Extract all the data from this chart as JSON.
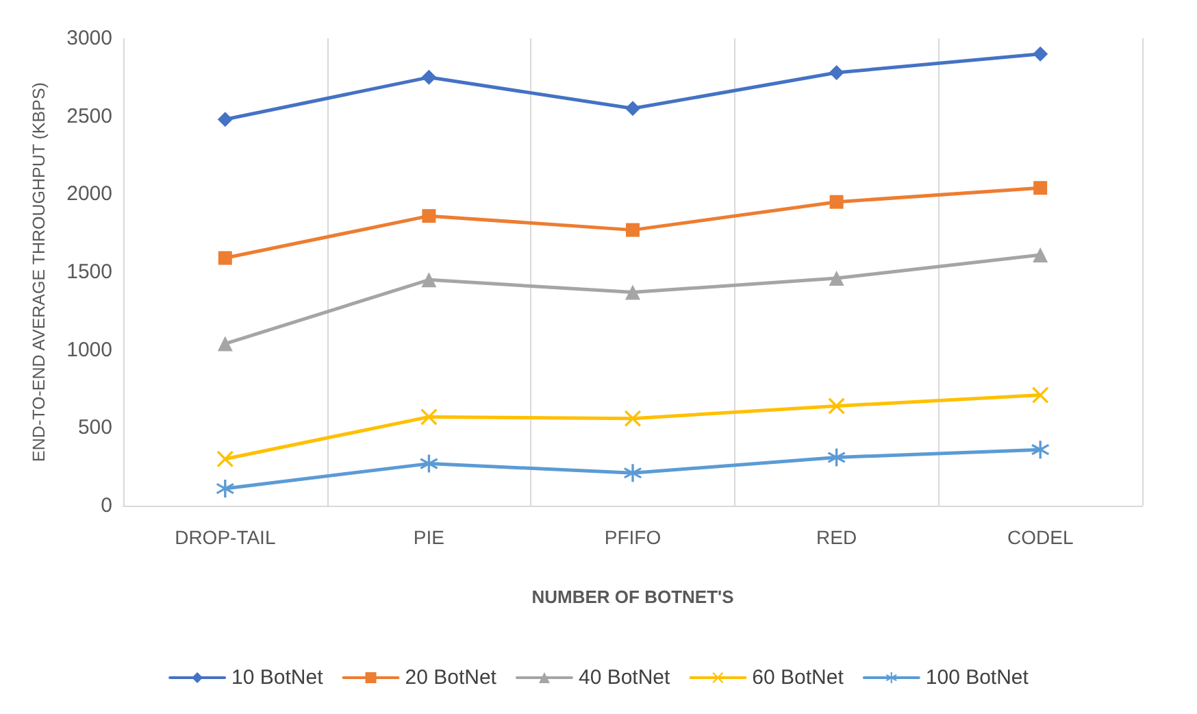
{
  "chart_data": {
    "type": "line",
    "xlabel": "NUMBER OF BOTNET'S",
    "ylabel": "END-TO-END AVERAGE THROUGHPUT (KBPS)",
    "categories": [
      "DROP-TAIL",
      "PIE",
      "PFIFO",
      "RED",
      "CODEL"
    ],
    "series": [
      {
        "name": "10 BotNet",
        "color": "#4472c4",
        "marker": "diamond",
        "values": [
          2480,
          2750,
          2550,
          2780,
          2900
        ]
      },
      {
        "name": "20 BotNet",
        "color": "#ed7d31",
        "marker": "square",
        "values": [
          1590,
          1860,
          1770,
          1950,
          2040
        ]
      },
      {
        "name": "40 BotNet",
        "color": "#a5a5a5",
        "marker": "triangle",
        "values": [
          1040,
          1450,
          1370,
          1460,
          1610
        ]
      },
      {
        "name": "60 BotNet",
        "color": "#ffc000",
        "marker": "cross",
        "values": [
          300,
          570,
          560,
          640,
          710
        ]
      },
      {
        "name": "100 BotNet",
        "color": "#5b9bd5",
        "marker": "star",
        "values": [
          110,
          270,
          210,
          310,
          360
        ]
      }
    ],
    "ylim": [
      0,
      3000
    ],
    "yticks": [
      0,
      500,
      1000,
      1500,
      2000,
      2500,
      3000
    ],
    "grid": "x",
    "legend": "bottom",
    "line_style": "solid"
  }
}
